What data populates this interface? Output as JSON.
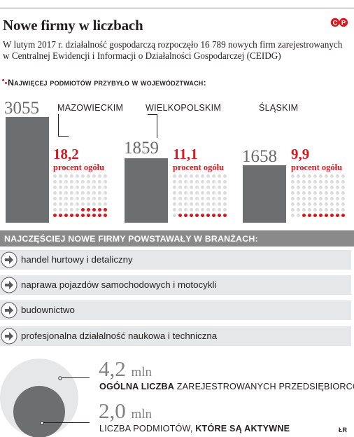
{
  "header": {
    "title": "Nowe firmy w liczbach",
    "intro": "W lutym 2017 r. działalność gospodarczą rozpoczęło 16 789 nowych firm zarejestrowanych w Centralnej Ewidencji i Informacji o Działalności Gospodarczej (CEIDG)"
  },
  "chart_data": {
    "type": "bar",
    "title": "Najwięcej podmiotów przybyło w województwach:",
    "categories": [
      "MAZOWIECKIM",
      "WIELKOPOLSKIM",
      "ŚLĄSKIM"
    ],
    "values": [
      3055,
      1859,
      1658
    ],
    "value_labels": [
      "3055",
      "1859",
      "1658"
    ],
    "share_labels": [
      "18,2",
      "11,1",
      "9,9"
    ],
    "shares_percent": [
      18.2,
      11.1,
      9.9
    ],
    "share_caption": "procent ogółu",
    "colors": {
      "bar": "#6d6e70",
      "accent": "#d71920",
      "dot_off": "#dcdcdc"
    }
  },
  "industries": {
    "title": "NAJCZĘŚCIEJ NOWE FIRMY POWSTAWAŁY W BRANŻACH:",
    "items": [
      "handel hurtowy i detaliczny",
      "naprawa pojazdów samochodowych i motocykli",
      "budownictwo",
      "profesjonalna działalność naukowa i techniczna"
    ]
  },
  "totals": {
    "registered": {
      "value": "4,2",
      "unit": "mln",
      "caption_bold": "OGÓLNA LICZBA",
      "caption_rest": "ZAREJESTROWANYCH PRZEDSIĘBIORCÓW"
    },
    "active": {
      "value": "2,0",
      "unit": "mln",
      "caption_rest": "LICZBA PODMIOTÓW,",
      "caption_bold": "KTÓRE SĄ AKTYWNE"
    }
  },
  "credit": "ŁR"
}
